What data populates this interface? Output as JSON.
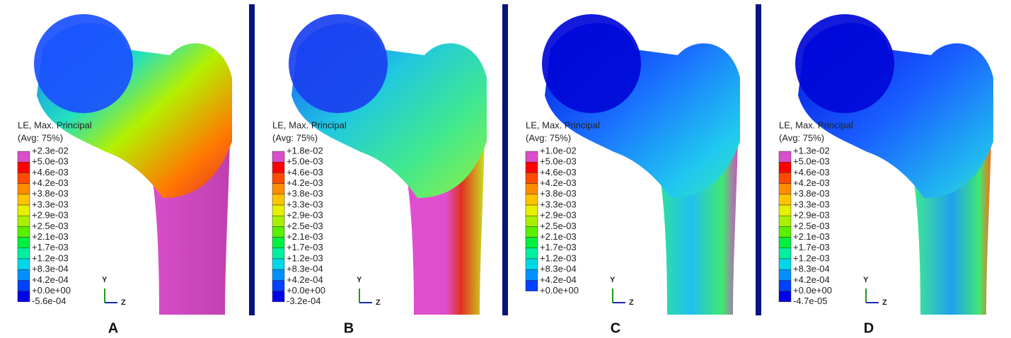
{
  "panels": [
    {
      "label": "A",
      "legend_title": "LE, Max. Principal",
      "legend_subtitle": "(Avg: 75%)",
      "legend_values": [
        "+2.3e-02",
        "+5.0e-03",
        "+4.6e-03",
        "+4.2e-03",
        "+3.8e-03",
        "+3.3e-03",
        "+2.9e-03",
        "+2.5e-03",
        "+2.1e-03",
        "+1.7e-03",
        "+1.2e-03",
        "+8.3e-04",
        "+4.2e-04",
        "+0.0e+00",
        "-5.6e-04"
      ],
      "axis_y": "Y",
      "axis_z": "Z"
    },
    {
      "label": "B",
      "legend_title": "LE, Max. Principal",
      "legend_subtitle": "(Avg: 75%)",
      "legend_values": [
        "+1.8e-02",
        "+5.0e-03",
        "+4.6e-03",
        "+4.2e-03",
        "+3.8e-03",
        "+3.3e-03",
        "+2.9e-03",
        "+2.5e-03",
        "+2.1e-03",
        "+1.7e-03",
        "+1.2e-03",
        "+8.3e-04",
        "+4.2e-04",
        "+0.0e+00",
        "-3.2e-04"
      ],
      "axis_y": "Y",
      "axis_z": "Z"
    },
    {
      "label": "C",
      "legend_title": "LE, Max. Principal",
      "legend_subtitle": "(Avg: 75%)",
      "legend_values": [
        "+1.0e-02",
        "+5.0e-03",
        "+4.6e-03",
        "+4.2e-03",
        "+3.8e-03",
        "+3.3e-03",
        "+2.9e-03",
        "+2.5e-03",
        "+2.1e-03",
        "+1.7e-03",
        "+1.2e-03",
        "+8.3e-04",
        "+4.2e-04",
        "+0.0e+00"
      ],
      "axis_y": "Y",
      "axis_z": "Z"
    },
    {
      "label": "D",
      "legend_title": "LE, Max. Principal",
      "legend_subtitle": "(Avg: 75%)",
      "legend_values": [
        "+1.3e-02",
        "+5.0e-03",
        "+4.6e-03",
        "+4.2e-03",
        "+3.8e-03",
        "+3.3e-03",
        "+2.9e-03",
        "+2.5e-03",
        "+2.1e-03",
        "+1.7e-03",
        "+1.2e-03",
        "+8.3e-04",
        "+4.2e-04",
        "+0.0e+00",
        "-4.7e-05"
      ],
      "axis_y": "Y",
      "axis_z": "Z"
    }
  ]
}
